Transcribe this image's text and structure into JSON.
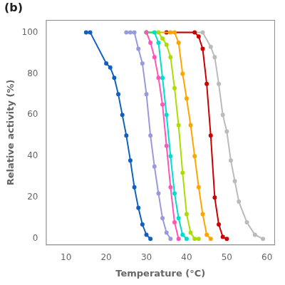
{
  "chart_data": {
    "type": "line",
    "xlabel": "Temperature (°C)",
    "ylabel": "Relative activity (%)",
    "annotations": [
      "(b)"
    ],
    "xlim": [
      5,
      62
    ],
    "ylim": [
      -3,
      106
    ],
    "xticks": [
      10,
      20,
      30,
      40,
      50,
      60
    ],
    "yticks": [
      0,
      20,
      40,
      60,
      80,
      100
    ],
    "grid": false,
    "marker": "point",
    "series": [
      {
        "color": "#1060C0",
        "x": [
          15,
          16,
          20,
          21,
          22,
          23,
          24,
          25,
          26,
          27,
          28,
          29,
          30,
          31
        ],
        "values": [
          100,
          100,
          85,
          83,
          78,
          70,
          60,
          50,
          38,
          25,
          15,
          7,
          2,
          0
        ]
      },
      {
        "color": "#9999DD",
        "x": [
          25,
          26,
          27,
          28,
          29,
          30,
          31,
          32,
          33,
          34,
          35,
          36
        ],
        "values": [
          100,
          100,
          100,
          92,
          85,
          70,
          50,
          35,
          22,
          10,
          3,
          0
        ]
      },
      {
        "color": "#FF55BB",
        "x": [
          30,
          31,
          32,
          33,
          34,
          35,
          36,
          37,
          38
        ],
        "values": [
          100,
          95,
          88,
          78,
          65,
          45,
          25,
          8,
          0
        ]
      },
      {
        "color": "#00DDCC",
        "x": [
          30,
          32,
          33,
          34,
          35,
          36,
          37,
          38,
          39,
          40
        ],
        "values": [
          100,
          100,
          95,
          78,
          60,
          40,
          22,
          10,
          2,
          0
        ]
      },
      {
        "color": "#AADD00",
        "x": [
          30,
          33,
          34,
          35,
          36,
          37,
          38,
          39,
          40,
          41,
          42,
          43
        ],
        "values": [
          100,
          100,
          97,
          94,
          88,
          73,
          55,
          32,
          12,
          3,
          0,
          0
        ]
      },
      {
        "color": "#FFA500",
        "x": [
          30,
          36,
          37,
          38,
          39,
          40,
          41,
          42,
          43,
          44,
          45,
          46
        ],
        "values": [
          100,
          100,
          100,
          95,
          80,
          68,
          55,
          40,
          25,
          12,
          2,
          0
        ]
      },
      {
        "color": "#CC0000",
        "x": [
          35,
          42,
          43,
          44,
          45,
          46,
          47,
          48,
          49,
          50
        ],
        "values": [
          100,
          100,
          98,
          92,
          75,
          50,
          20,
          7,
          1,
          0
        ]
      },
      {
        "color": "#BBBBBB",
        "x": [
          35,
          44,
          46,
          47,
          48,
          49,
          50,
          51,
          52,
          53,
          55,
          57,
          59
        ],
        "values": [
          100,
          100,
          93,
          88,
          75,
          60,
          52,
          38,
          28,
          18,
          8,
          2,
          0
        ]
      }
    ]
  }
}
